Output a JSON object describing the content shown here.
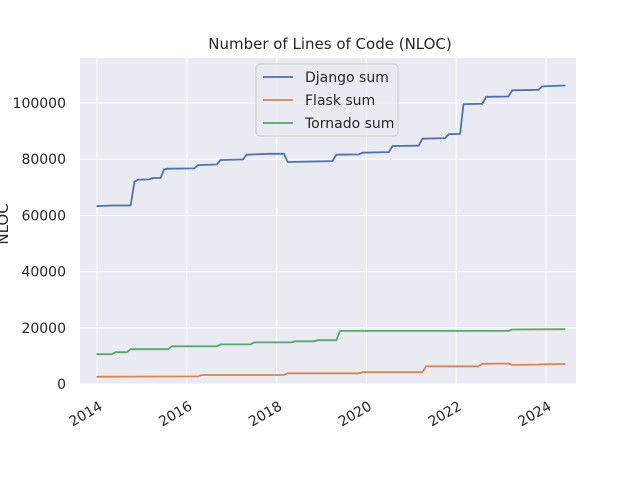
{
  "chart_data": {
    "type": "line",
    "title": "Number of Lines of Code (NLOC)",
    "xlabel": "",
    "ylabel": "NLOC",
    "x_axis_kind": "date",
    "xlim": [
      "2013-08-15",
      "2024-09-01"
    ],
    "ylim": [
      0,
      116000
    ],
    "x_ticks": [
      {
        "date": "2014-01-01",
        "label": "2014"
      },
      {
        "date": "2016-01-01",
        "label": "2016"
      },
      {
        "date": "2018-01-01",
        "label": "2018"
      },
      {
        "date": "2020-01-01",
        "label": "2020"
      },
      {
        "date": "2022-01-01",
        "label": "2022"
      },
      {
        "date": "2024-01-01",
        "label": "2024"
      }
    ],
    "y_ticks": [
      {
        "value": 0,
        "label": "0"
      },
      {
        "value": 20000,
        "label": "20000"
      },
      {
        "value": 40000,
        "label": "40000"
      },
      {
        "value": 60000,
        "label": "60000"
      },
      {
        "value": 80000,
        "label": "80000"
      },
      {
        "value": 100000,
        "label": "100000"
      }
    ],
    "grid": true,
    "legend_position": "top-center",
    "background": "#eaeaf2",
    "series": [
      {
        "name": "Django sum",
        "color": "#4c72b0",
        "x": [
          "2014-01-01",
          "2014-05-01",
          "2014-10-01",
          "2014-11-01",
          "2014-12-01",
          "2015-03-01",
          "2015-04-01",
          "2015-06-01",
          "2015-07-01",
          "2015-08-01",
          "2016-03-01",
          "2016-04-01",
          "2016-09-01",
          "2016-10-01",
          "2017-04-01",
          "2017-05-01",
          "2017-11-01",
          "2018-03-01",
          "2018-04-01",
          "2019-04-01",
          "2019-05-01",
          "2019-11-01",
          "2019-12-01",
          "2020-07-01",
          "2020-08-01",
          "2021-03-01",
          "2021-04-01",
          "2021-10-01",
          "2021-11-01",
          "2022-02-01",
          "2022-03-01",
          "2022-08-01",
          "2022-09-01",
          "2023-03-01",
          "2023-04-01",
          "2023-11-01",
          "2023-12-01",
          "2024-06-01"
        ],
        "y": [
          63300,
          63500,
          63500,
          72000,
          72700,
          72800,
          73300,
          73300,
          76400,
          76600,
          76700,
          77900,
          78100,
          79700,
          79900,
          81600,
          81900,
          81900,
          79000,
          79300,
          81600,
          81700,
          82300,
          82500,
          84700,
          84800,
          87300,
          87500,
          88900,
          89000,
          99600,
          99700,
          102200,
          102300,
          104500,
          104700,
          105900,
          106200
        ]
      },
      {
        "name": "Flask sum",
        "color": "#dd8452",
        "x": [
          "2014-01-01",
          "2016-04-01",
          "2016-05-01",
          "2018-03-01",
          "2018-04-01",
          "2019-11-01",
          "2019-12-01",
          "2021-04-01",
          "2021-05-01",
          "2022-07-01",
          "2022-08-01",
          "2023-03-01",
          "2023-04-01",
          "2023-11-01",
          "2023-12-01",
          "2024-06-01"
        ],
        "y": [
          2600,
          2700,
          3200,
          3200,
          3800,
          3800,
          4200,
          4200,
          6300,
          6300,
          7200,
          7300,
          6800,
          6900,
          7000,
          7100
        ]
      },
      {
        "name": "Tornado sum",
        "color": "#55a868",
        "x": [
          "2014-01-01",
          "2014-05-01",
          "2014-06-01",
          "2014-09-01",
          "2014-10-01",
          "2015-08-01",
          "2015-09-01",
          "2016-09-01",
          "2016-10-01",
          "2017-06-01",
          "2017-07-01",
          "2018-05-01",
          "2018-06-01",
          "2018-11-01",
          "2018-12-01",
          "2019-05-01",
          "2019-06-01",
          "2023-03-01",
          "2023-04-01",
          "2024-06-01"
        ],
        "y": [
          10600,
          10600,
          11300,
          11300,
          12400,
          12400,
          13400,
          13400,
          14100,
          14100,
          14800,
          14800,
          15200,
          15200,
          15600,
          15600,
          18900,
          18900,
          19400,
          19500
        ]
      }
    ]
  }
}
